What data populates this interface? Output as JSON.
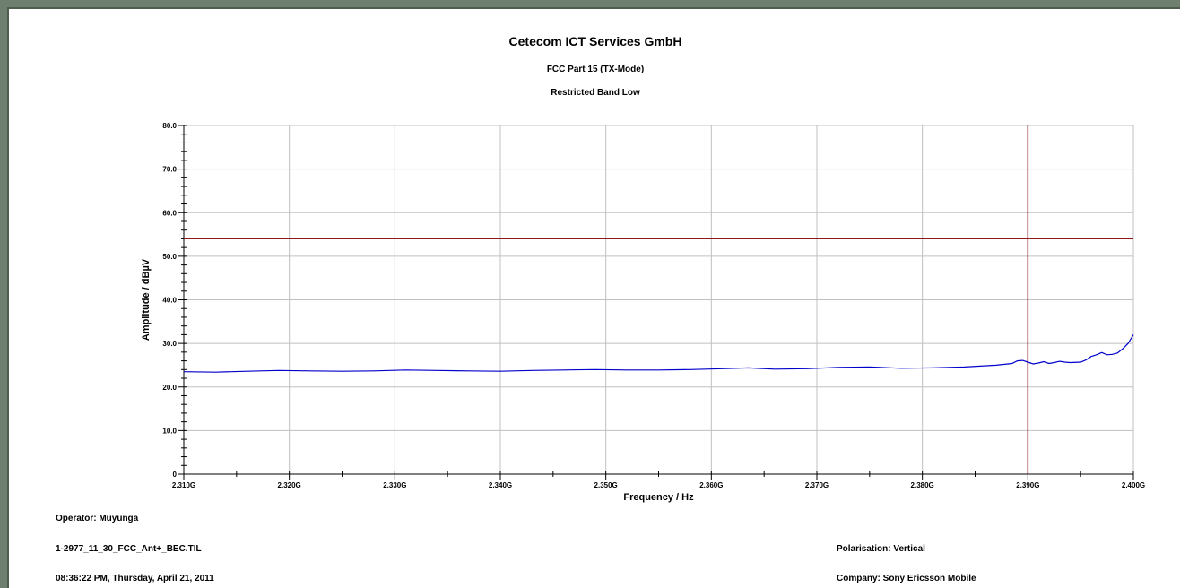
{
  "header": {
    "title": "Cetecom ICT Services GmbH",
    "subtitle": "FCC Part 15 (TX-Mode)",
    "subtitle2": "Restricted Band Low"
  },
  "footer": {
    "operator": "Operator: Muyunga",
    "file": "1-2977_11_30_FCC_Ant+_BEC.TIL",
    "datetime": "08:36:22 PM, Thursday, April 21, 2011",
    "polarisation": "Polarisation: Vertical",
    "company": "Company: Sony Ericsson Mobile"
  },
  "colors": {
    "trace": "#0000cc",
    "limit": "#8b1a1a",
    "grid": "#c0c0c0",
    "background": "#6f7f6f"
  },
  "chart_data": {
    "type": "line",
    "title": "Cetecom ICT Services GmbH",
    "xlabel": "Frequency / Hz",
    "ylabel": "Amplitude / dBµV",
    "xlim": [
      2.31,
      2.4
    ],
    "ylim": [
      0,
      80
    ],
    "x_ticks": [
      2.31,
      2.32,
      2.33,
      2.34,
      2.35,
      2.36,
      2.37,
      2.38,
      2.39,
      2.4
    ],
    "x_tick_labels": [
      "2.310G",
      "2.320G",
      "2.330G",
      "2.340G",
      "2.350G",
      "2.360G",
      "2.370G",
      "2.380G",
      "2.390G",
      "2.400G"
    ],
    "y_ticks": [
      0,
      10,
      20,
      30,
      40,
      50,
      60,
      70,
      80
    ],
    "y_tick_labels": [
      "0",
      "10.0",
      "20.0",
      "30.0",
      "40.0",
      "50.0",
      "60.0",
      "70.0",
      "80.0"
    ],
    "grid": true,
    "limit_line": 54,
    "marker_x": 2.39,
    "series": [
      {
        "x": [
          2.31,
          2.313,
          2.316,
          2.319,
          2.322,
          2.325,
          2.328,
          2.331,
          2.334,
          2.337,
          2.34,
          2.343,
          2.346,
          2.349,
          2.352,
          2.355,
          2.358,
          2.361,
          2.3635,
          2.366,
          2.369,
          2.372,
          2.375,
          2.378,
          2.381,
          2.384,
          2.387,
          2.3885,
          2.389,
          2.3895,
          2.3905,
          2.391,
          2.3915,
          2.392,
          2.3925,
          2.393,
          2.3935,
          2.394,
          2.395,
          2.3955,
          2.396,
          2.3965,
          2.397,
          2.3975,
          2.398,
          2.3985,
          2.399,
          2.3995,
          2.4
        ],
        "values": [
          23.5,
          23.4,
          23.6,
          23.8,
          23.7,
          23.6,
          23.7,
          23.9,
          23.8,
          23.7,
          23.6,
          23.8,
          23.9,
          24.0,
          23.9,
          23.9,
          24.0,
          24.2,
          24.4,
          24.1,
          24.2,
          24.5,
          24.6,
          24.3,
          24.4,
          24.6,
          25.0,
          25.4,
          26.0,
          26.1,
          25.3,
          25.5,
          25.8,
          25.4,
          25.6,
          25.9,
          25.7,
          25.6,
          25.7,
          26.2,
          27.0,
          27.4,
          27.9,
          27.4,
          27.5,
          27.8,
          28.8,
          30.0,
          32.0
        ]
      }
    ]
  }
}
